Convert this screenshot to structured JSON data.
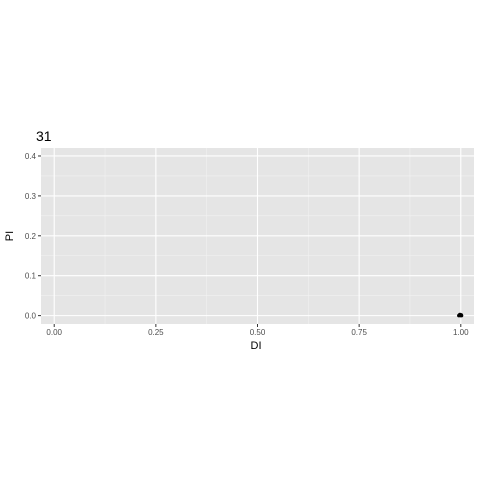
{
  "chart_data": {
    "type": "scatter",
    "title": "31",
    "xlabel": "DI",
    "ylabel": "PI",
    "xlim": [
      -0.0325,
      1.0325
    ],
    "ylim": [
      -0.021,
      0.42
    ],
    "x_ticks": [
      0.0,
      0.25,
      0.5,
      0.75,
      1.0
    ],
    "x_tick_labels": [
      "0.00",
      "0.25",
      "0.50",
      "0.75",
      "1.00"
    ],
    "y_ticks": [
      0.0,
      0.1,
      0.2,
      0.3,
      0.4
    ],
    "y_tick_labels": [
      "0.0",
      "0.1",
      "0.2",
      "0.3",
      "0.4"
    ],
    "grid": true,
    "legend": "none",
    "colors": {
      "panel_background": "#e5e5e5",
      "grid_major": "#ffffff",
      "grid_minor": "#f2f2f2",
      "tick": "#333333",
      "tick_label": "#4d4d4d",
      "point": "#000000"
    },
    "points": [
      {
        "x": 0.995,
        "y": 0.0
      },
      {
        "x": 0.997,
        "y": 0.002
      },
      {
        "x": 0.999,
        "y": 0.0
      },
      {
        "x": 1.0,
        "y": 0.001
      },
      {
        "x": 1.002,
        "y": 0.0
      },
      {
        "x": 0.998,
        "y": 0.003
      },
      {
        "x": 1.001,
        "y": 0.002
      }
    ]
  }
}
